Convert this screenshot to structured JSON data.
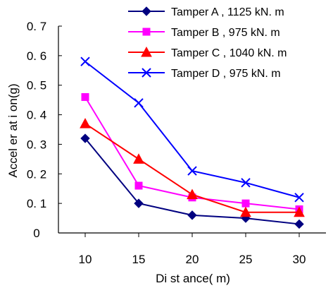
{
  "chart_data": {
    "type": "line",
    "title": "",
    "xlabel": "Di st ance( m)",
    "ylabel": "Accel er at i on(g)",
    "x": [
      10,
      15,
      20,
      25,
      30
    ],
    "xlim": [
      7.5,
      32.5
    ],
    "ylim": [
      0,
      0.7
    ],
    "yticks": [
      "0",
      "0. 1",
      "0. 2",
      "0. 3",
      "0. 4",
      "0. 5",
      "0. 6",
      "0. 7"
    ],
    "xticks": [
      "10",
      "15",
      "20",
      "25",
      "30"
    ],
    "grid": false,
    "legend_position": "top-right",
    "series": [
      {
        "name": "Tamper   A , 1125  kN. m",
        "values": [
          0.32,
          0.1,
          0.06,
          0.05,
          0.03
        ],
        "color": "#000080",
        "marker": "diamond"
      },
      {
        "name": "Tamper   B ,    975  kN. m",
        "values": [
          0.46,
          0.16,
          0.12,
          0.1,
          0.08
        ],
        "color": "#ff00ff",
        "marker": "square"
      },
      {
        "name": "Tamper   C , 1040  kN. m",
        "values": [
          0.37,
          0.25,
          0.13,
          0.07,
          0.07
        ],
        "color": "#ff0000",
        "marker": "triangle"
      },
      {
        "name": "Tamper   D ,    975  kN. m",
        "values": [
          0.58,
          0.44,
          0.21,
          0.17,
          0.12
        ],
        "color": "#0000ff",
        "marker": "x"
      }
    ]
  }
}
